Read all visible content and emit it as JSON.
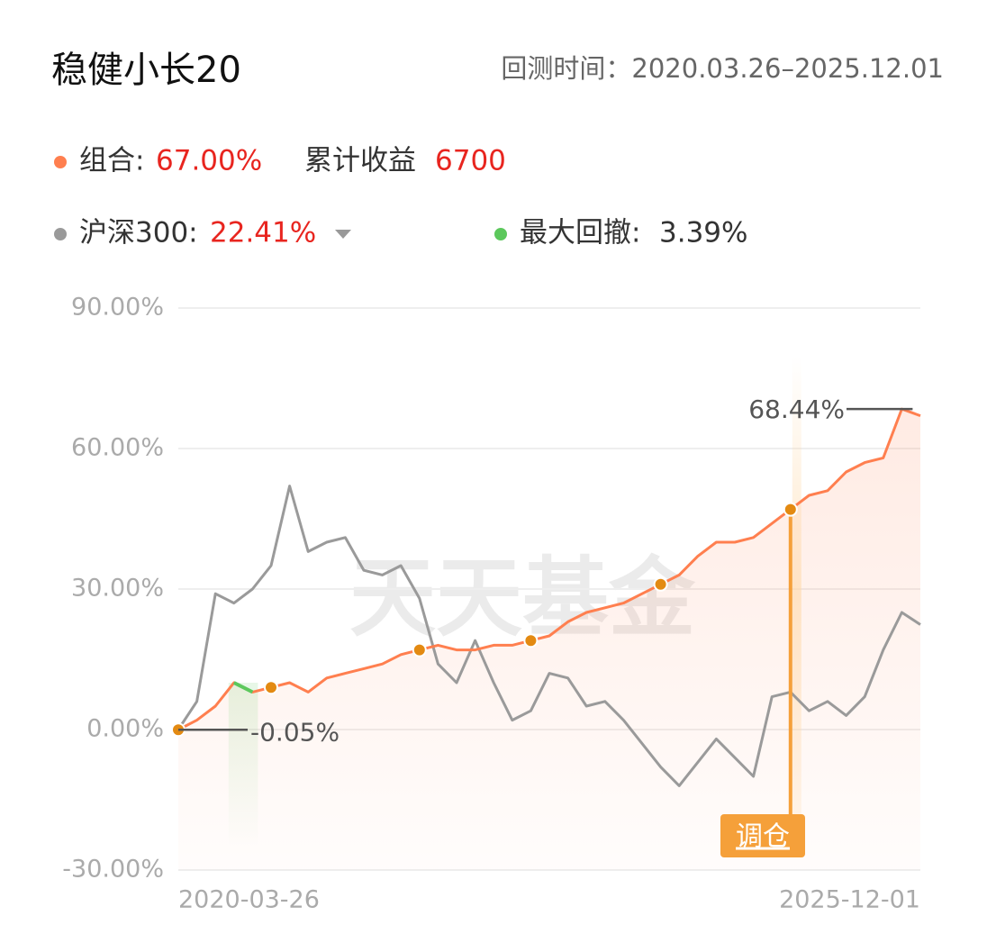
{
  "chart_data": {
    "type": "line",
    "title": "稳健小长20",
    "period_label": "回测时间：",
    "period": "2020.03.26–2025.12.01",
    "cumulative_label": "累计收益",
    "cumulative": 6700,
    "drawdown_label": "最大回撤:",
    "drawdown": 3.39,
    "drawdown_value_label": "3.39%",
    "drawdown_color": "#5cc85c",
    "watermark": "天天基金",
    "button": "调仓",
    "max_label": "68.44%",
    "min_label": "-0.05%",
    "categories": [
      "2020-03-26",
      null,
      null,
      null,
      null,
      null,
      null,
      null,
      null,
      null,
      null,
      null,
      null,
      null,
      null,
      null,
      null,
      null,
      null,
      null,
      null,
      null,
      null,
      null,
      null,
      null,
      null,
      null,
      null,
      null,
      null,
      null,
      null,
      null,
      null,
      null,
      null,
      null,
      null,
      null,
      "2025-12-01"
    ],
    "series": [
      {
        "name": "组合:",
        "color": "#ff7f4f",
        "return": 67,
        "return_label": "67.00%",
        "values": [
          -0.05,
          2,
          5,
          10,
          8,
          9,
          10,
          8,
          11,
          12,
          13,
          14,
          16,
          17,
          18,
          17,
          17,
          18,
          18,
          19,
          20,
          23,
          25,
          26,
          27,
          29,
          31,
          33,
          37,
          40,
          40,
          41,
          44,
          47,
          50,
          51,
          55,
          57,
          58,
          68.44,
          67
        ]
      },
      {
        "name": "沪深300:",
        "color": "#9a9a9a",
        "return": 22.41,
        "return_label": "22.41%",
        "values": [
          0,
          6,
          29,
          27,
          30,
          35,
          52,
          38,
          40,
          41,
          34,
          33,
          35,
          28,
          14,
          10,
          19,
          10,
          2,
          4,
          12,
          11,
          5,
          6,
          2,
          -3,
          -8,
          -12,
          -7,
          -2,
          -6,
          -10,
          7,
          8,
          4,
          6,
          3,
          7,
          17,
          25,
          22.41
        ]
      }
    ],
    "ylim": [
      -30,
      90
    ],
    "yticks": [
      {
        "value": 90,
        "label": "90.00%"
      },
      {
        "value": 60,
        "label": "60.00%"
      },
      {
        "value": 30,
        "label": "30.00%"
      },
      {
        "value": 0,
        "label": "0.00%"
      },
      {
        "value": -30,
        "label": "-30.00%"
      }
    ],
    "grid": true
  }
}
